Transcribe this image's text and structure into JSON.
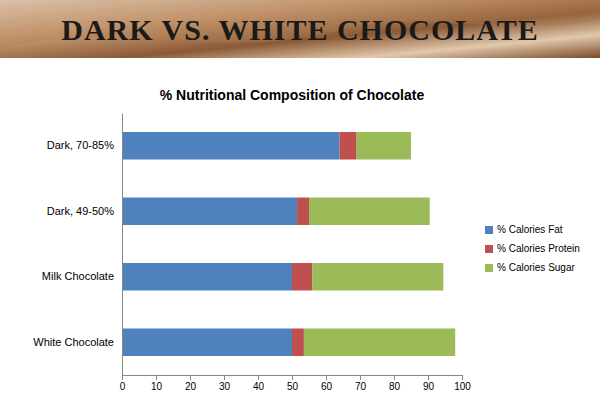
{
  "header": {
    "title": "DARK VS. WHITE CHOCOLATE"
  },
  "chart_data": {
    "type": "bar",
    "orientation": "horizontal",
    "stacked": true,
    "title": "% Nutritional Composition of Chocolate",
    "categories": [
      "Dark, 70-85%",
      "Dark, 49-50%",
      "Milk Chocolate",
      "White Chocolate"
    ],
    "series": [
      {
        "name": "% Calories Fat",
        "color": "#4f81bd",
        "values": [
          64,
          51.5,
          50,
          50
        ]
      },
      {
        "name": "% Calories Protein",
        "color": "#c0504d",
        "values": [
          5,
          3.5,
          6,
          3.5
        ]
      },
      {
        "name": "% Calories Sugar",
        "color": "#9bbb59",
        "values": [
          16,
          35.5,
          38.5,
          44.5
        ]
      }
    ],
    "xlim": [
      0,
      100
    ],
    "xticks": [
      0,
      10,
      20,
      30,
      40,
      50,
      60,
      70,
      80,
      90,
      100
    ],
    "grid": false,
    "legend": "right"
  }
}
